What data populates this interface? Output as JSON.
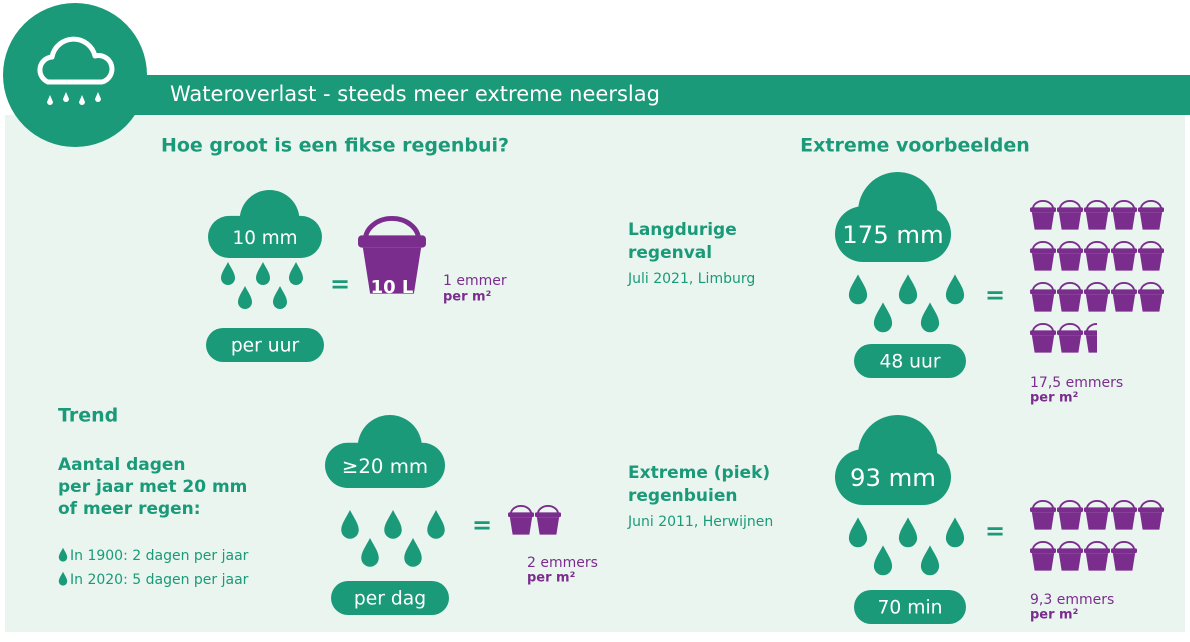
{
  "header": {
    "title": "Wateroverlast - steeds meer extreme neerslag"
  },
  "equals": "=",
  "intro": {
    "title": "Hoe groot is een fikse regenbui?",
    "amount": "10 mm",
    "duration": "per uur",
    "bucket_label": "10 L",
    "buckets": "1 emmer",
    "unit": "per m²"
  },
  "trend": {
    "title": "Trend",
    "question": [
      "Aantal dagen",
      "per jaar met 20 mm",
      "of meer regen:"
    ],
    "items": [
      "In 1900: 2 dagen per jaar",
      "In 2020: 5 dagen per jaar"
    ],
    "amount": "≥20 mm",
    "duration": "per dag",
    "buckets": "2 emmers",
    "unit": "per m²"
  },
  "examples": {
    "title": "Extreme voorbeelden",
    "items": [
      {
        "name": [
          "Langdurige",
          "regenval"
        ],
        "date": "Juli 2021, Limburg",
        "amount": "175 mm",
        "duration": "48 uur",
        "buckets": "17,5 emmers",
        "unit": "per m²"
      },
      {
        "name": [
          "Extreme (piek)",
          "regenbuien"
        ],
        "date": "Juni 2011, Herwijnen",
        "amount": "93 mm",
        "duration": "70 min",
        "buckets": "9,3 emmers",
        "unit": "per m²"
      }
    ]
  }
}
